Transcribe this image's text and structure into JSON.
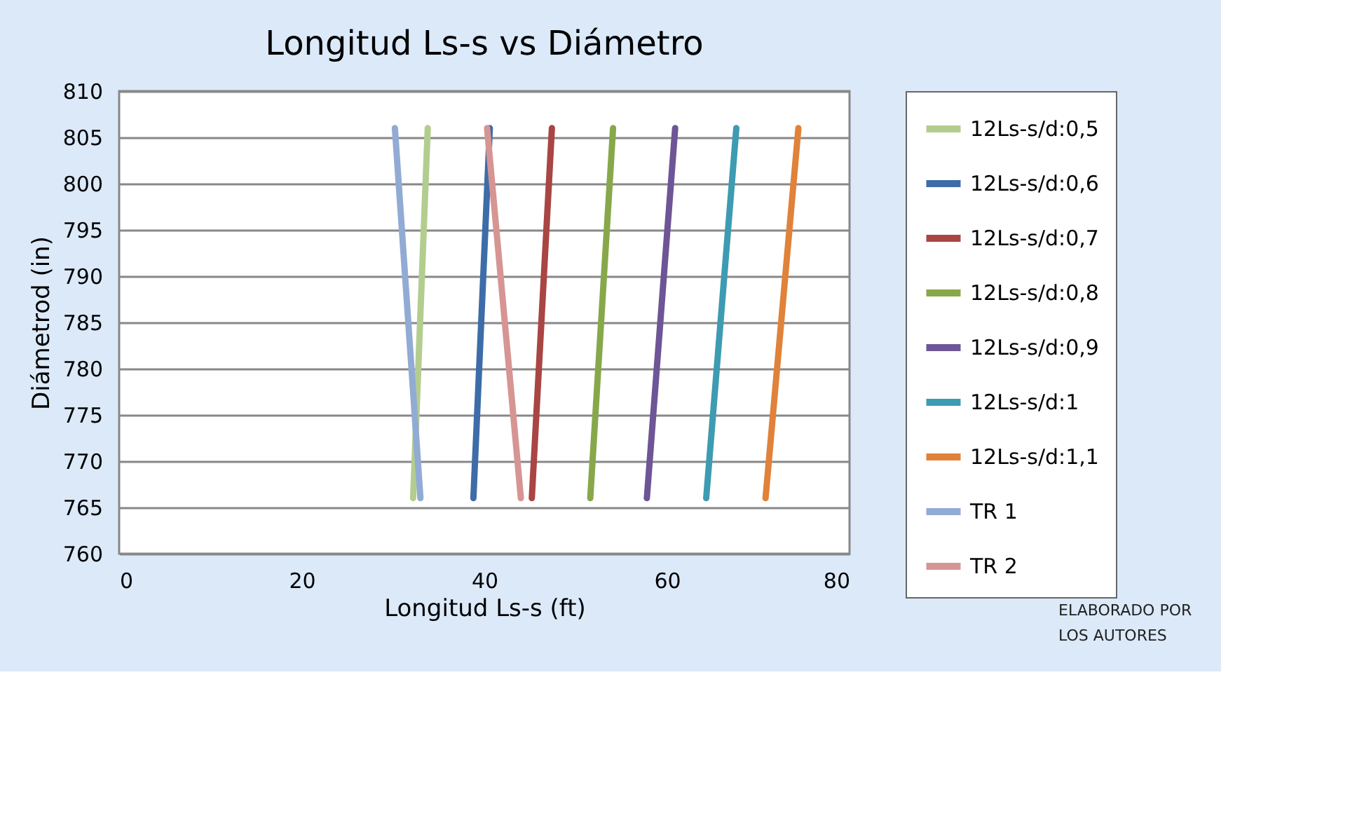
{
  "chart_data": {
    "type": "line",
    "title": "Longitud Ls-s vs Diámetro",
    "xlabel": "Longitud Ls-s (ft)",
    "ylabel": "Diámetrod (in)",
    "xlim": [
      0,
      80
    ],
    "xticks": [
      0,
      20,
      40,
      60,
      80
    ],
    "ylim": [
      760,
      810
    ],
    "yticks": [
      760,
      765,
      770,
      775,
      780,
      785,
      790,
      795,
      800,
      805,
      810
    ],
    "grid": "y",
    "legend": "right",
    "marker": "none",
    "line_style": "solid",
    "annotations": [
      "ELABORADO POR LOS AUTORES"
    ],
    "series": [
      {
        "name": "12Ls-s/d:0,5",
        "color": "#b3cd8f",
        "x": [
          32.2,
          33.8
        ],
        "values": [
          766,
          806
        ]
      },
      {
        "name": "12Ls-s/d:0,6",
        "color": "#3d6ca8",
        "x": [
          38.8,
          40.6
        ],
        "values": [
          766,
          806
        ]
      },
      {
        "name": "12Ls-s/d:0,7",
        "color": "#a94543",
        "x": [
          45.2,
          47.4
        ],
        "values": [
          766,
          806
        ]
      },
      {
        "name": "12Ls-s/d:0,8",
        "color": "#87a84a",
        "x": [
          51.6,
          54.1
        ],
        "values": [
          766,
          806
        ]
      },
      {
        "name": "12Ls-s/d:0,9",
        "color": "#6e5596",
        "x": [
          57.8,
          60.9
        ],
        "values": [
          766,
          806
        ]
      },
      {
        "name": "12Ls-s/d:1",
        "color": "#3d9bb2",
        "x": [
          64.3,
          67.6
        ],
        "values": [
          766,
          806
        ]
      },
      {
        "name": "12Ls-s/d:1,1",
        "color": "#e0823a",
        "x": [
          70.8,
          74.4
        ],
        "values": [
          766,
          806
        ]
      },
      {
        "name": "TR 1",
        "color": "#92abd4",
        "x": [
          33.0,
          30.2
        ],
        "values": [
          766,
          806
        ]
      },
      {
        "name": "TR 2",
        "color": "#d69593",
        "x": [
          44.0,
          40.3
        ],
        "values": [
          766,
          806
        ]
      }
    ]
  }
}
